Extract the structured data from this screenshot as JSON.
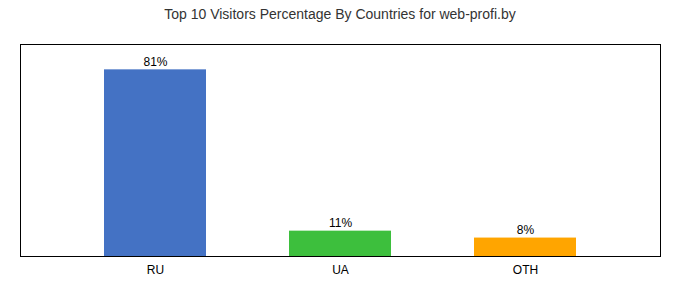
{
  "chart_data": {
    "type": "bar",
    "title": "Top 10 Visitors Percentage By Countries for web-profi.by",
    "categories": [
      "RU",
      "UA",
      "OTH"
    ],
    "values": [
      81,
      11,
      8
    ],
    "value_labels": [
      "81%",
      "11%",
      "8%"
    ],
    "colors": [
      "#4472C4",
      "#3DBF3D",
      "#FFA500"
    ],
    "ylim": [
      0,
      92
    ],
    "data_labels": true,
    "tick_labels": "x"
  }
}
